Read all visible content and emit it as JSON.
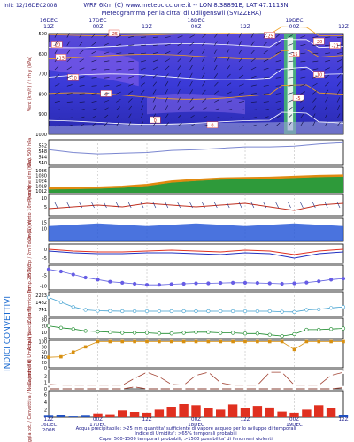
{
  "header": {
    "init": "init: 12/16DEC2008",
    "line1": "WRF 6Km (C) www.meteociccione.it -- LON 8.38891E, LAT 47.1113N",
    "line2": "Meteogramma per la citta' di Udligenswil (SVIZZERA)"
  },
  "time_labels": {
    "top": [
      {
        "t": 0,
        "lines": [
          "16DEC",
          "12Z"
        ]
      },
      {
        "t": 12,
        "lines": [
          "17DEC",
          "00Z"
        ]
      },
      {
        "t": 24,
        "lines": [
          "",
          "12Z"
        ]
      },
      {
        "t": 36,
        "lines": [
          "18DEC",
          "00Z"
        ]
      },
      {
        "t": 48,
        "lines": [
          "",
          "12Z"
        ]
      },
      {
        "t": 60,
        "lines": [
          "19DEC",
          "00Z"
        ]
      },
      {
        "t": 72,
        "lines": [
          "",
          "12Z"
        ]
      }
    ],
    "bottom": [
      {
        "t": 0,
        "lines": [
          "12Z",
          "16DEC",
          "2008"
        ]
      },
      {
        "t": 12,
        "lines": [
          "00Z",
          "17DEC"
        ]
      },
      {
        "t": 24,
        "lines": [
          "12Z",
          ""
        ]
      },
      {
        "t": 36,
        "lines": [
          "00Z",
          "18DEC"
        ]
      },
      {
        "t": 48,
        "lines": [
          "12Z",
          ""
        ]
      },
      {
        "t": 60,
        "lines": [
          "00Z",
          "19DEC"
        ]
      },
      {
        "t": 72,
        "lines": [
          "12Z",
          ""
        ]
      }
    ]
  },
  "side_label": "INDICI CONVETTIVI",
  "footer": {
    "line1": "Acqua precipitabile: >25 mm quantita' sufficiente di vapore acqueo per lo sviluppo di temporali",
    "line2": "Indice di Umidita': >65% temporali probabili",
    "line3": "Cape: 500-1500 temporali probabili, >1500 possibilita' di fenomeni violenti"
  },
  "colors": {
    "frame": "#000000",
    "grid": "#b0b0b0",
    "header": "#1a1a8a",
    "cross_section_bg": "#3a3ad8",
    "geopotential": "#7a86d0",
    "pressure_fill": "#2e9a3a",
    "pressure_top": "#e08a10",
    "wind_vectors": "#203080",
    "wind_curve": "#c03020",
    "wave": "#2a5ad8",
    "temp_red": "#e03020",
    "temp_blue": "#2030c0",
    "tdew": "#6060e0",
    "freezing": "#40a0d0",
    "rh_green": "#1a8a2a",
    "cape": "#d89010",
    "lifted": "#a04030",
    "precip": "#e03020",
    "precip_blue": "#2050c0"
  },
  "chart_data": [
    {
      "type": "heatmap",
      "name": "cross-section",
      "title": "",
      "ylabel": "Vent (km/h) / t rh y (hPa)",
      "y_ticks": [
        "500",
        "600",
        "700",
        "800",
        "900",
        "1000"
      ],
      "ylim": [
        1000,
        500
      ],
      "isotherms": [
        -25,
        -20,
        -15,
        -10,
        -5,
        0
      ],
      "isotherm_labels": [
        {
          "t": 16,
          "p": 500,
          "v": "-25"
        },
        {
          "t": 54,
          "p": 510,
          "v": "-25"
        },
        {
          "t": 66,
          "p": 540,
          "v": "-20"
        },
        {
          "t": 70,
          "p": 560,
          "v": "-21"
        },
        {
          "t": 2,
          "p": 555,
          "v": "-20"
        },
        {
          "t": 60,
          "p": 600,
          "v": "-15"
        },
        {
          "t": 3,
          "p": 620,
          "v": "-15"
        },
        {
          "t": 6,
          "p": 720,
          "v": "-10"
        },
        {
          "t": 66,
          "p": 705,
          "v": "-10"
        },
        {
          "t": 14,
          "p": 800,
          "v": "-5"
        },
        {
          "t": 61,
          "p": 820,
          "v": "-5"
        },
        {
          "t": 26,
          "p": 930,
          "v": "0"
        },
        {
          "t": 40,
          "p": 955,
          "v": "0"
        }
      ]
    },
    {
      "type": "line",
      "name": "geopotential",
      "ylabel": "Geo. 500 hPa",
      "y_ticks": [
        "552",
        "548",
        "544",
        "540"
      ],
      "ylim": [
        538,
        556
      ],
      "x": [
        0,
        6,
        12,
        18,
        24,
        30,
        36,
        42,
        48,
        54,
        60,
        66,
        72
      ],
      "values": [
        549,
        547,
        546,
        546.5,
        547,
        548.5,
        549,
        550,
        551,
        551,
        551.5,
        553,
        554
      ]
    },
    {
      "type": "area",
      "name": "pressure",
      "ylabel": "Pressione slm (hPa)",
      "y_ticks": [
        "1036",
        "1030",
        "1024",
        "1018",
        "1012"
      ],
      "ylim": [
        1010,
        1040
      ],
      "x": [
        0,
        6,
        12,
        18,
        24,
        30,
        36,
        42,
        48,
        54,
        60,
        66,
        72
      ],
      "values": [
        1014,
        1014.5,
        1015,
        1016,
        1018,
        1022,
        1024,
        1025.5,
        1026,
        1026.5,
        1027.5,
        1028.5,
        1029
      ]
    },
    {
      "type": "line",
      "name": "wind-10m",
      "ylabel": "Vento 10m (km/h)",
      "y_ticks": [
        "10",
        "5"
      ],
      "ylim": [
        0,
        12
      ],
      "x": [
        0,
        6,
        12,
        18,
        24,
        30,
        36,
        42,
        48,
        54,
        60,
        66,
        72
      ],
      "values": [
        4,
        5,
        6,
        5,
        7,
        6,
        5,
        6,
        7,
        5,
        3,
        6,
        7
      ]
    },
    {
      "type": "area",
      "name": "wave",
      "ylabel": "Onda (m)",
      "y_ticks": [
        "15",
        "10"
      ],
      "ylim": [
        0,
        18
      ],
      "x": [
        0,
        6,
        12,
        18,
        24,
        30,
        36,
        42,
        48,
        54,
        60,
        66,
        72
      ],
      "values": [
        12,
        13,
        14,
        13,
        12,
        13,
        14,
        13,
        12,
        13,
        14,
        13,
        12
      ]
    },
    {
      "type": "line",
      "name": "temp-2m",
      "ylabel": "2m Temp / 2m Tdew (C)",
      "y_ticks": [
        "0",
        "-5"
      ],
      "ylim": [
        -8,
        3
      ],
      "x": [
        0,
        6,
        12,
        18,
        24,
        30,
        36,
        42,
        48,
        54,
        60,
        66,
        72
      ],
      "series": [
        {
          "values": [
            0,
            -1,
            -1.5,
            -1.5,
            -1,
            -0.5,
            -1,
            -1.5,
            -0.5,
            -1,
            -3,
            -1,
            0
          ]
        },
        {
          "values": [
            -1,
            -2,
            -2.5,
            -2.5,
            -2,
            -2,
            -2.5,
            -3,
            -2,
            -2.5,
            -5,
            -2.5,
            -1.5
          ]
        }
      ]
    },
    {
      "type": "line",
      "name": "temp-850",
      "ylabel": "Temp. 850 (C)",
      "y_ticks": [
        "-5",
        "-10"
      ],
      "ylim": [
        -12,
        0
      ],
      "x": [
        0,
        3,
        6,
        9,
        12,
        15,
        18,
        21,
        24,
        27,
        30,
        33,
        36,
        39,
        42,
        45,
        48,
        51,
        54,
        57,
        60,
        63,
        66,
        69,
        72
      ],
      "values": [
        -2,
        -3,
        -4.5,
        -6,
        -7,
        -8,
        -8.5,
        -9,
        -9.5,
        -9.5,
        -9.2,
        -9,
        -8.8,
        -8.8,
        -8.6,
        -8.5,
        -8.5,
        -8.6,
        -8.8,
        -9,
        -8.8,
        -8.4,
        -7.8,
        -7,
        -6.5
      ]
    },
    {
      "type": "line",
      "name": "freezing-level",
      "ylabel": "Zero Termico (m)",
      "y_ticks": [
        "2223",
        "1482",
        "741",
        "0"
      ],
      "ylim": [
        0,
        2600
      ],
      "x": [
        0,
        3,
        6,
        9,
        12,
        15,
        18,
        21,
        24,
        27,
        30,
        33,
        36,
        39,
        42,
        45,
        48,
        51,
        54,
        57,
        60,
        63,
        66,
        69,
        72
      ],
      "values": [
        2000,
        1500,
        1000,
        700,
        600,
        580,
        560,
        560,
        560,
        560,
        560,
        560,
        560,
        560,
        560,
        560,
        560,
        560,
        560,
        500,
        480,
        700,
        750,
        900,
        1000
      ]
    },
    {
      "type": "line",
      "name": "precipitable-water",
      "ylabel": "Acqua precip. (mm)",
      "y_ticks": [
        "30",
        "20",
        "10",
        "0"
      ],
      "ylim": [
        0,
        32
      ],
      "x": [
        0,
        3,
        6,
        9,
        12,
        15,
        18,
        21,
        24,
        27,
        30,
        33,
        36,
        39,
        42,
        45,
        48,
        51,
        54,
        57,
        60,
        63,
        66,
        69,
        72
      ],
      "values": [
        20,
        17,
        15,
        12,
        11,
        10,
        9,
        9,
        9,
        8,
        8,
        9,
        10,
        10,
        9,
        9,
        8,
        8,
        6,
        4,
        7,
        14,
        14,
        15,
        16
      ]
    },
    {
      "type": "line",
      "name": "humidity-index",
      "ylabel": "Indice di Umidita' (%)",
      "y_ticks": [
        "100",
        "80",
        "60",
        "40",
        "20",
        "0"
      ],
      "ylim": [
        0,
        105
      ],
      "x": [
        0,
        3,
        6,
        9,
        12,
        15,
        18,
        21,
        24,
        27,
        30,
        33,
        36,
        39,
        42,
        45,
        48,
        51,
        54,
        57,
        60,
        63,
        66,
        69,
        72
      ],
      "values": [
        40,
        42,
        60,
        80,
        100,
        100,
        100,
        100,
        100,
        100,
        100,
        100,
        100,
        100,
        100,
        100,
        100,
        100,
        100,
        100,
        70,
        100,
        100,
        100,
        100
      ]
    },
    {
      "type": "line",
      "name": "cape",
      "ylabel": "Cape",
      "y_ticks": [
        "2",
        "1",
        "0"
      ],
      "ylim": [
        0,
        3
      ],
      "x": [
        0,
        3,
        6,
        9,
        12,
        15,
        18,
        21,
        24,
        27,
        30,
        33,
        36,
        39,
        42,
        45,
        48,
        51,
        54,
        57,
        60,
        63,
        66,
        69,
        72
      ],
      "values": [
        0,
        0,
        0,
        0,
        0,
        0,
        0,
        0.3,
        0,
        0,
        0,
        0,
        0,
        0,
        0,
        0,
        0,
        0,
        0,
        0,
        0,
        0,
        0,
        0,
        0.2
      ]
    },
    {
      "type": "line",
      "name": "lifted-index",
      "ylabel": "Lifted (K/kg)",
      "y_ticks": [
        "10",
        "5",
        "0"
      ],
      "ylim": [
        -1,
        13
      ],
      "x": [
        0,
        3,
        6,
        9,
        12,
        15,
        18,
        21,
        24,
        27,
        30,
        33,
        36,
        39,
        42,
        45,
        48,
        51,
        54,
        57,
        60,
        63,
        66,
        69,
        72
      ],
      "values": [
        2,
        1.5,
        1.5,
        1.5,
        1.5,
        1.5,
        1.5,
        6,
        10,
        7,
        2,
        1.5,
        8,
        10,
        3,
        1.5,
        1.5,
        1.5,
        10,
        10,
        1.5,
        1.5,
        1.5,
        8,
        10
      ]
    },
    {
      "type": "bar",
      "name": "precipitation",
      "ylabel": "Pioggia tot. / Convettiva / Neve (mm/3h)",
      "y_ticks": [
        "6",
        "4",
        "2"
      ],
      "ylim": [
        0,
        7
      ],
      "x": [
        0,
        3,
        6,
        9,
        12,
        15,
        18,
        21,
        24,
        27,
        30,
        33,
        36,
        39,
        42,
        45,
        48,
        51,
        54,
        57,
        60,
        63,
        66,
        69,
        72
      ],
      "values": [
        0.4,
        0.5,
        0.2,
        0.4,
        1,
        0.8,
        1.8,
        1.4,
        1.2,
        2,
        2.8,
        3.5,
        3.2,
        2.5,
        2,
        3.4,
        2.5,
        3,
        2.6,
        1.5,
        1.2,
        2,
        3.2,
        2.4,
        0.5
      ],
      "colors": [
        "precip_blue",
        "precip_blue",
        "precip_blue",
        "precip_blue",
        "precip",
        "precip",
        "precip",
        "precip",
        "precip",
        "precip",
        "precip",
        "precip",
        "precip",
        "precip",
        "precip",
        "precip",
        "precip",
        "precip",
        "precip",
        "precip",
        "precip",
        "precip",
        "precip",
        "precip",
        "precip_blue"
      ]
    }
  ]
}
